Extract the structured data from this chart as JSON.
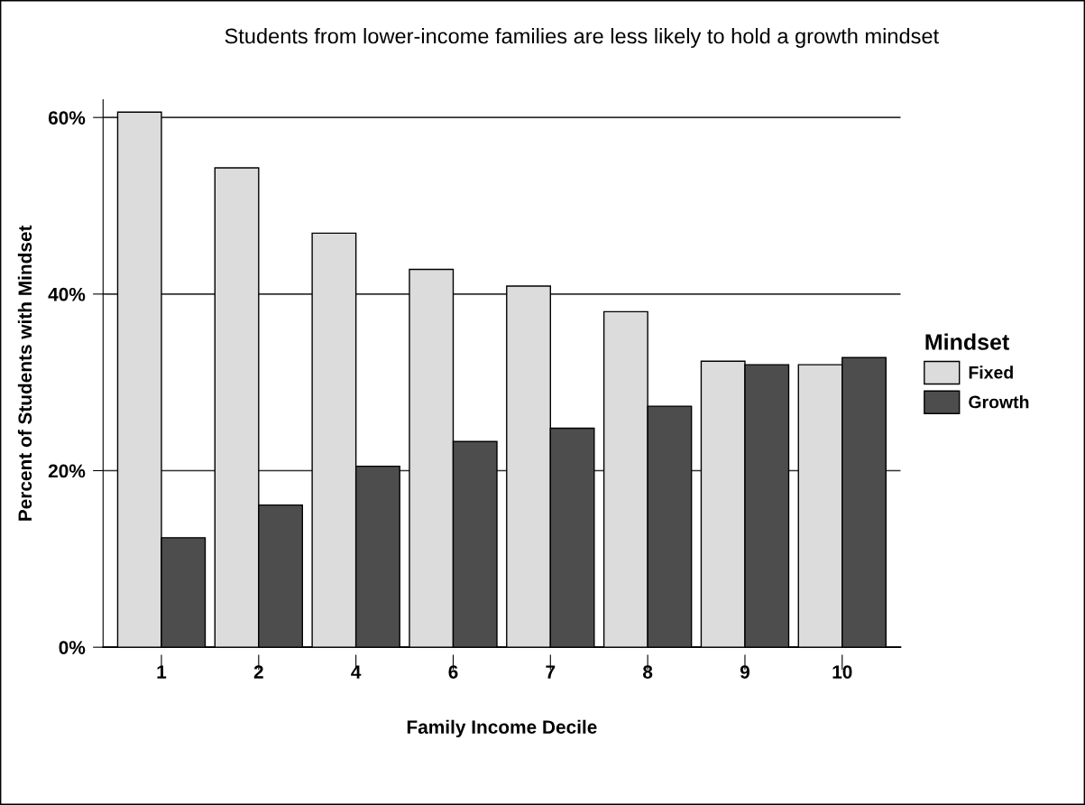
{
  "chart_data": {
    "type": "bar",
    "title": "Students from lower-income families are less likely to hold a growth mindset",
    "xlabel": "Family Income Decile",
    "ylabel": "Percent of Students with Mindset",
    "legend_title": "Mindset",
    "categories": [
      "1",
      "2",
      "4",
      "6",
      "7",
      "8",
      "9",
      "10"
    ],
    "series": [
      {
        "name": "Fixed",
        "color": "#dcdcdc",
        "values": [
          60.6,
          54.3,
          46.9,
          42.8,
          40.9,
          38.0,
          32.4,
          32.0
        ]
      },
      {
        "name": "Growth",
        "color": "#4d4d4d",
        "values": [
          12.4,
          16.1,
          20.5,
          23.3,
          24.8,
          27.3,
          32.0,
          32.8
        ]
      }
    ],
    "ylim": [
      0,
      62
    ],
    "yticks": [
      {
        "value": 0,
        "label": "0%"
      },
      {
        "value": 20,
        "label": "20%"
      },
      {
        "value": 40,
        "label": "40%"
      },
      {
        "value": 60,
        "label": "60%"
      }
    ],
    "grid": "y",
    "legend": "right"
  }
}
